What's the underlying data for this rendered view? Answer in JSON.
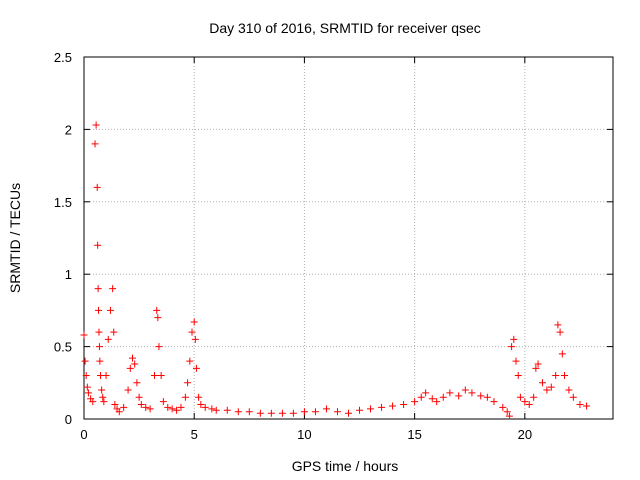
{
  "chart_data": {
    "type": "scatter",
    "title": "Day 310 of 2016, SRMTID for receiver qsec",
    "xlabel": "GPS time / hours",
    "ylabel": "SRMTID / TECUs",
    "xlim": [
      0,
      24
    ],
    "ylim": [
      0,
      2.5
    ],
    "x_ticks": [
      0,
      5,
      10,
      15,
      20
    ],
    "x_tick_labels": [
      "0",
      "5",
      "10",
      "15",
      "20"
    ],
    "y_ticks": [
      0,
      0.5,
      1,
      1.5,
      2,
      2.5
    ],
    "y_tick_labels": [
      "0",
      "0.5",
      "1",
      "1.5",
      "2",
      "2.5"
    ],
    "grid": true,
    "marker": "+",
    "color": "#ff0000",
    "series": [
      {
        "name": "SRMTID",
        "x": [
          0.0,
          0.05,
          0.1,
          0.15,
          0.2,
          0.3,
          0.4,
          0.5,
          0.55,
          0.6,
          0.62,
          0.64,
          0.66,
          0.68,
          0.7,
          0.72,
          0.75,
          0.8,
          0.85,
          0.9,
          1.0,
          1.1,
          1.2,
          1.3,
          1.35,
          1.4,
          1.5,
          1.6,
          1.8,
          2.0,
          2.1,
          2.2,
          2.3,
          2.4,
          2.5,
          2.6,
          2.8,
          3.0,
          3.2,
          3.3,
          3.35,
          3.4,
          3.5,
          3.6,
          3.8,
          4.0,
          4.2,
          4.4,
          4.6,
          4.7,
          4.8,
          4.9,
          5.0,
          5.05,
          5.1,
          5.2,
          5.3,
          5.5,
          5.8,
          6.0,
          6.5,
          7.0,
          7.5,
          8.0,
          8.5,
          9.0,
          9.5,
          10.0,
          10.5,
          11.0,
          11.5,
          12.0,
          12.5,
          13.0,
          13.5,
          14.0,
          14.5,
          15.0,
          15.3,
          15.5,
          15.8,
          16.0,
          16.3,
          16.6,
          17.0,
          17.3,
          17.6,
          18.0,
          18.3,
          18.6,
          19.0,
          19.2,
          19.3,
          19.4,
          19.5,
          19.6,
          19.7,
          19.8,
          20.0,
          20.2,
          20.4,
          20.5,
          20.6,
          20.8,
          21.0,
          21.2,
          21.4,
          21.5,
          21.6,
          21.7,
          21.8,
          22.0,
          22.2,
          22.5,
          22.8
        ],
        "values": [
          0.58,
          0.4,
          0.3,
          0.22,
          0.18,
          0.14,
          0.12,
          1.9,
          2.03,
          1.6,
          1.2,
          0.9,
          0.75,
          0.6,
          0.5,
          0.4,
          0.3,
          0.2,
          0.15,
          0.12,
          0.3,
          0.55,
          0.75,
          0.9,
          0.6,
          0.1,
          0.07,
          0.05,
          0.08,
          0.2,
          0.35,
          0.42,
          0.38,
          0.25,
          0.15,
          0.1,
          0.08,
          0.07,
          0.3,
          0.75,
          0.7,
          0.5,
          0.3,
          0.12,
          0.08,
          0.07,
          0.06,
          0.08,
          0.15,
          0.25,
          0.4,
          0.6,
          0.67,
          0.55,
          0.35,
          0.15,
          0.1,
          0.08,
          0.07,
          0.06,
          0.06,
          0.05,
          0.05,
          0.04,
          0.04,
          0.04,
          0.04,
          0.05,
          0.05,
          0.07,
          0.05,
          0.04,
          0.06,
          0.07,
          0.08,
          0.09,
          0.1,
          0.12,
          0.15,
          0.18,
          0.14,
          0.12,
          0.15,
          0.18,
          0.16,
          0.2,
          0.18,
          0.16,
          0.15,
          0.12,
          0.08,
          0.05,
          0.02,
          0.5,
          0.55,
          0.4,
          0.3,
          0.15,
          0.12,
          0.1,
          0.15,
          0.35,
          0.38,
          0.25,
          0.2,
          0.22,
          0.3,
          0.65,
          0.6,
          0.45,
          0.3,
          0.2,
          0.15,
          0.1,
          0.09
        ]
      }
    ]
  }
}
